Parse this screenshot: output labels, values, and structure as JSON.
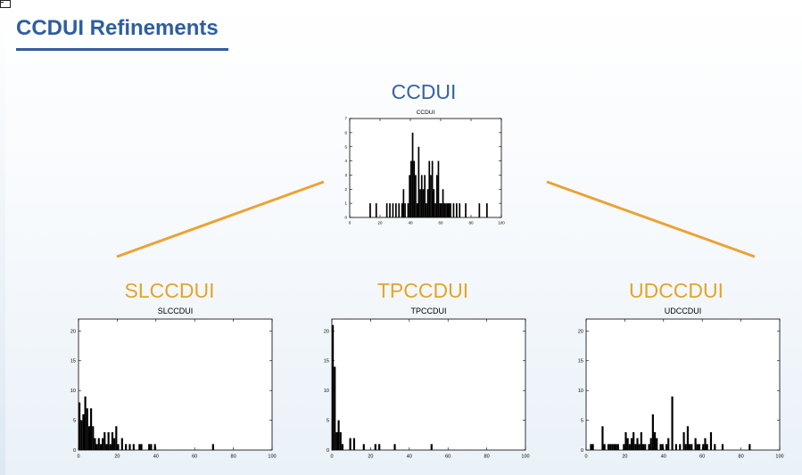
{
  "slide": {
    "title": "CCDUI Refinements"
  },
  "nodes": {
    "root": {
      "label": "CCDUI"
    },
    "left": {
      "label": "SLCCDUI"
    },
    "mid": {
      "label": "TPCCDUI"
    },
    "right": {
      "label": "UDCCDUI"
    }
  },
  "colors": {
    "title": "#2f5e9e",
    "root_label": "#3563a3",
    "child_label": "#e3a52a",
    "connector": "#eba234",
    "bars": "#000000"
  },
  "chart_data": [
    {
      "id": "ccdui",
      "type": "bar",
      "title": "CCDUI",
      "xlim": [
        0,
        100
      ],
      "ylim": [
        0,
        7
      ],
      "xticks": [
        0,
        20,
        40,
        60,
        80,
        100
      ],
      "yticks": [
        0,
        1,
        2,
        3,
        4,
        5,
        6,
        7
      ],
      "bin_width": 1,
      "x": [
        13,
        17,
        24,
        26,
        28,
        30,
        32,
        34,
        35,
        36,
        38,
        39,
        40,
        41,
        42,
        43,
        44,
        45,
        46,
        47,
        48,
        49,
        50,
        51,
        52,
        53,
        54,
        55,
        56,
        57,
        58,
        59,
        60,
        61,
        62,
        63,
        64,
        65,
        66,
        68,
        70,
        72,
        76,
        85,
        90
      ],
      "values": [
        1,
        1,
        1,
        1,
        1,
        1,
        1,
        1,
        2,
        1,
        1,
        3,
        4,
        6,
        4,
        3,
        1,
        5,
        2,
        3,
        2,
        3,
        1,
        2,
        4,
        3,
        4,
        2,
        1,
        3,
        4,
        1,
        1,
        2,
        1,
        1,
        1,
        1,
        1,
        1,
        1,
        1,
        1,
        1,
        1
      ]
    },
    {
      "id": "slccdui",
      "type": "bar",
      "title": "SLCCDUI",
      "xlim": [
        0,
        100
      ],
      "ylim": [
        0,
        22
      ],
      "xticks": [
        0,
        20,
        40,
        60,
        80,
        100
      ],
      "yticks": [
        0,
        5,
        10,
        15,
        20
      ],
      "bin_width": 1,
      "x": [
        0,
        1,
        2,
        3,
        4,
        5,
        6,
        7,
        8,
        9,
        10,
        11,
        12,
        13,
        14,
        15,
        16,
        17,
        18,
        19,
        20,
        22,
        24,
        26,
        28,
        31,
        32,
        36,
        37,
        39,
        69
      ],
      "values": [
        8,
        5,
        6,
        9,
        7,
        4,
        7,
        4,
        2,
        1,
        2,
        1,
        2,
        3,
        1,
        3,
        1,
        3,
        2,
        4,
        1,
        2,
        1,
        1,
        1,
        1,
        1,
        1,
        1,
        1,
        1
      ]
    },
    {
      "id": "tpccdui",
      "type": "bar",
      "title": "TPCCDUI",
      "xlim": [
        0,
        100
      ],
      "ylim": [
        0,
        22
      ],
      "xticks": [
        0,
        20,
        40,
        60,
        80,
        100
      ],
      "yticks": [
        0,
        5,
        10,
        15,
        20
      ],
      "bin_width": 1,
      "x": [
        0,
        1,
        2,
        3,
        4,
        5,
        9,
        11,
        16,
        22,
        24,
        32,
        51
      ],
      "values": [
        21,
        14,
        3,
        5,
        3,
        1,
        2,
        2,
        1,
        1,
        1,
        1,
        1
      ]
    },
    {
      "id": "udccdui",
      "type": "bar",
      "title": "UDCCDUI",
      "xlim": [
        0,
        100
      ],
      "ylim": [
        0,
        22
      ],
      "xticks": [
        0,
        20,
        40,
        60,
        80,
        100
      ],
      "yticks": [
        0,
        5,
        10,
        15,
        20
      ],
      "bin_width": 1,
      "x": [
        2,
        3,
        8,
        9,
        11,
        12,
        13,
        14,
        15,
        16,
        19,
        20,
        21,
        22,
        23,
        24,
        25,
        26,
        27,
        28,
        29,
        30,
        32,
        33,
        34,
        35,
        36,
        38,
        39,
        41,
        42,
        44,
        46,
        48,
        50,
        51,
        52,
        53,
        54,
        56,
        57,
        58,
        60,
        61,
        62,
        64,
        66,
        70,
        84
      ],
      "values": [
        1,
        1,
        4,
        1,
        1,
        1,
        1,
        1,
        1,
        1,
        1,
        3,
        2,
        1,
        2,
        3,
        1,
        2,
        1,
        3,
        1,
        1,
        1,
        2,
        6,
        3,
        2,
        1,
        1,
        1,
        2,
        9,
        1,
        1,
        3,
        1,
        4,
        1,
        1,
        2,
        1,
        1,
        1,
        2,
        1,
        3,
        1,
        1,
        1
      ]
    }
  ]
}
